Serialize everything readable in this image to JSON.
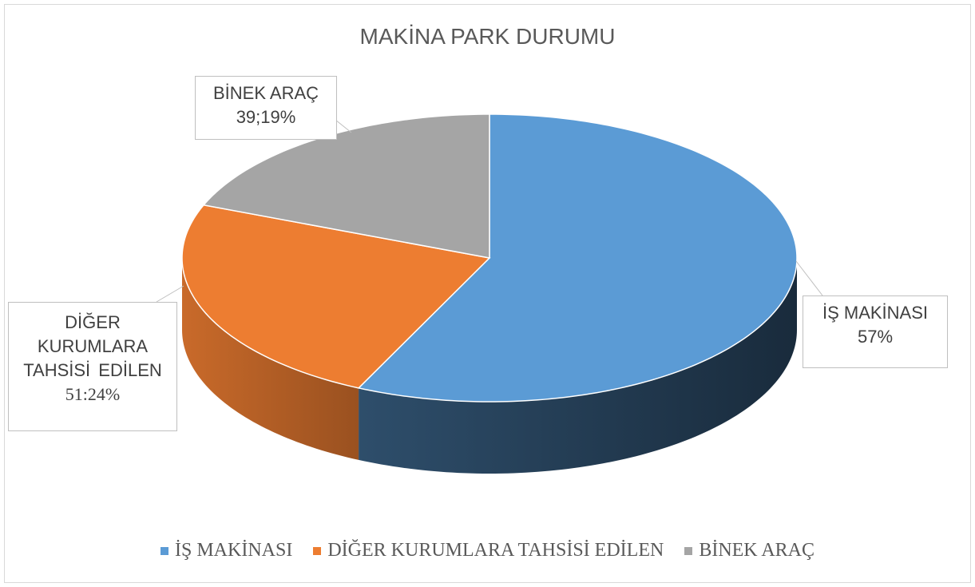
{
  "chart_data": {
    "type": "pie3d",
    "title": "MAKİNA PARK DURUMU",
    "categories": [
      "İŞ MAKİNASI",
      "DİĞER KURUMLARA TAHSİSİ EDİLEN",
      "BİNEK ARAÇ"
    ],
    "values": [
      57,
      24,
      19
    ],
    "value_labels": [
      "57%",
      "51:24%",
      "39;19%"
    ],
    "colors": [
      "#5b9bd5",
      "#ed7d31",
      "#a5a5a5"
    ],
    "legend": "bottom"
  }
}
